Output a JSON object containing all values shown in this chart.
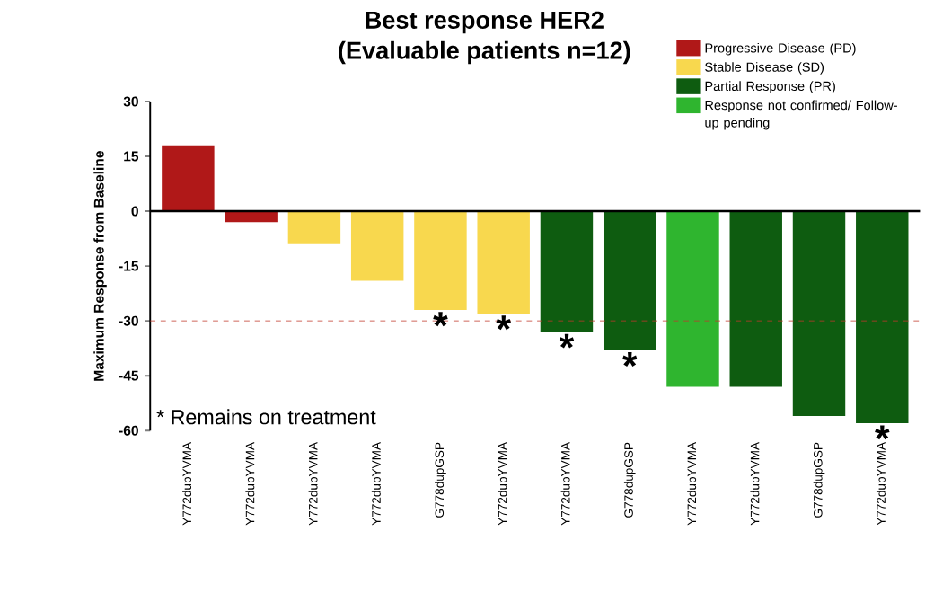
{
  "chart_data": {
    "type": "bar",
    "title": "Best response HER2",
    "subtitle": "(Evaluable patients n=12)",
    "ylabel": "Maximum Response from  Baseline",
    "categories": [
      "Y772dupYVMA",
      "Y772dupYVMA",
      "Y772dupYVMA",
      "Y772dupYVMA",
      "G778dupGSP",
      "Y772dupYVMA",
      "Y772dupYVMA",
      "G778dupGSP",
      "Y772dupYVMA",
      "Y772dupYVMA",
      "G778dupGSP",
      "Y772dupYVMA"
    ],
    "series": [
      {
        "name": "Progressive Disease (PD)",
        "color": "#b01818",
        "values": [
          18,
          -3,
          null,
          null,
          null,
          null,
          null,
          null,
          null,
          null,
          null,
          null
        ]
      },
      {
        "name": "Stable Disease (SD)",
        "color": "#f8d84e",
        "values": [
          null,
          null,
          -9,
          -19,
          -27,
          -28,
          null,
          null,
          null,
          null,
          null,
          null
        ],
        "value_labels": [
          null,
          null,
          null,
          null,
          "*",
          "*",
          null,
          null,
          null,
          null,
          null,
          null
        ]
      },
      {
        "name": "Partial Response (PR)",
        "color": "#0e5c10",
        "values": [
          null,
          null,
          null,
          null,
          null,
          null,
          -33,
          -38,
          null,
          -48,
          -56,
          -58
        ],
        "value_labels": [
          null,
          null,
          null,
          null,
          null,
          null,
          "*",
          "*",
          null,
          null,
          null,
          "*"
        ]
      },
      {
        "name": "Response not confirmed/ Follow-up pending",
        "color": "#2fb52f",
        "values": [
          null,
          null,
          null,
          null,
          null,
          null,
          null,
          null,
          -48,
          null,
          null,
          null
        ]
      }
    ],
    "ylim": [
      -60,
      30
    ],
    "yticks": [
      30,
      15,
      0,
      -15,
      -30,
      -45,
      -60
    ],
    "ref_lines": [
      {
        "axis": "y",
        "value": -30,
        "color": "#c0392b",
        "line_style": "dashed"
      }
    ],
    "annotations": [
      "* Remains on treatment"
    ],
    "legend": "top right",
    "grid": false
  }
}
